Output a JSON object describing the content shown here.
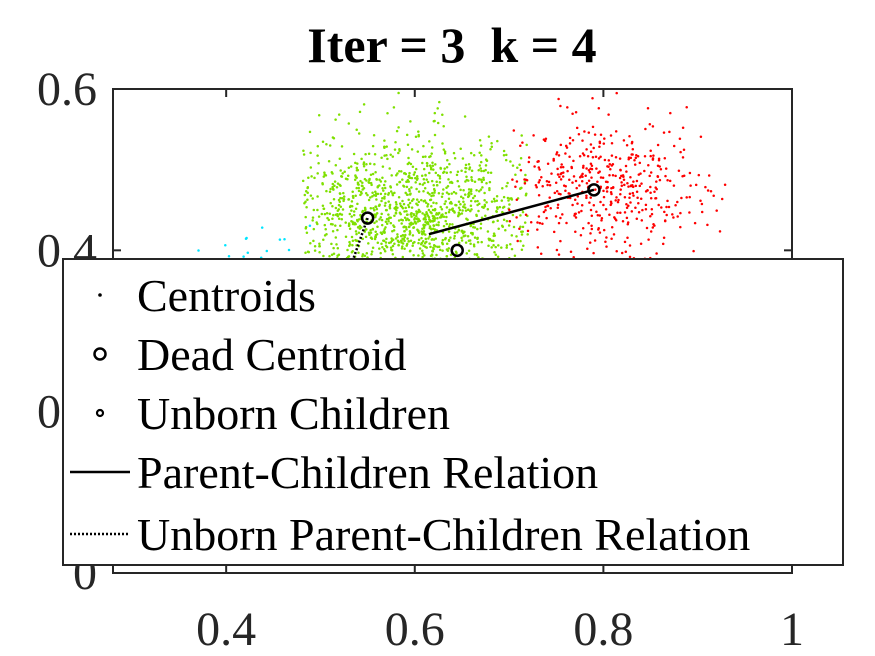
{
  "chart_data": {
    "type": "scatter",
    "title": "Iter = 3  k = 4",
    "xlabel": "",
    "ylabel": "",
    "xlim": [
      0.28,
      1.0
    ],
    "ylim": [
      0.0,
      0.6
    ],
    "xticks": [
      0.4,
      0.6,
      0.8,
      1.0
    ],
    "xtick_labels": [
      "0.4",
      "0.6",
      "0.8",
      "1"
    ],
    "yticks": [
      0.0,
      0.2,
      0.4,
      0.6
    ],
    "ytick_labels": [
      "0",
      "0.2",
      "0.4",
      "0.6"
    ],
    "grid": false,
    "legend_position": "lower-left, overlapping plot area",
    "clusters": [
      {
        "color": "#7FE000",
        "center": [
          0.6,
          0.44
        ],
        "spread": [
          0.075,
          0.05
        ],
        "count": 1600,
        "xmin": 0.48,
        "xmax": 0.72,
        "ymin": 0.3,
        "ymax": 0.6
      },
      {
        "color": "#FF0000",
        "center": [
          0.8,
          0.48
        ],
        "spread": [
          0.055,
          0.045
        ],
        "count": 500,
        "xmin": 0.7,
        "xmax": 0.93,
        "ymin": 0.3,
        "ymax": 0.6
      },
      {
        "color": "#00E5FF",
        "center": [
          0.43,
          0.38
        ],
        "spread": [
          0.035,
          0.03
        ],
        "count": 50,
        "xmin": 0.37,
        "xmax": 0.5,
        "ymin": 0.3,
        "ymax": 0.45
      }
    ],
    "dead_centroids": [
      {
        "x": 0.79,
        "y": 0.475
      },
      {
        "x": 0.55,
        "y": 0.44
      },
      {
        "x": 0.645,
        "y": 0.4
      }
    ],
    "parent_children_relations": [
      {
        "x": [
          0.615,
          0.79
        ],
        "y": [
          0.42,
          0.475
        ]
      }
    ],
    "unborn_relations": [
      {
        "x": [
          0.55,
          0.535
        ],
        "y": [
          0.44,
          0.39
        ]
      }
    ],
    "legend": [
      {
        "label": "Centroids",
        "marker": "dot"
      },
      {
        "label": "Dead Centroid",
        "marker": "circle"
      },
      {
        "label": "Unborn Children",
        "marker": "small-circle"
      },
      {
        "label": "Parent-Children Relation",
        "marker": "solid-line"
      },
      {
        "label": "Unborn Parent-Children Relation",
        "marker": "dotted-line"
      }
    ]
  }
}
